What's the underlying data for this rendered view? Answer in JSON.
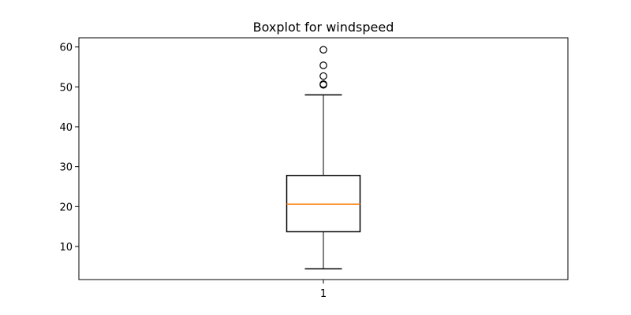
{
  "chart_data": {
    "type": "boxplot",
    "title": "Boxplot for windspeed",
    "xlabel": "",
    "ylabel": "",
    "categories": [
      "1"
    ],
    "y_ticks": [
      10,
      20,
      30,
      40,
      50,
      60
    ],
    "ylim": [
      1.7,
      62.3
    ],
    "grid": false,
    "boxes": [
      {
        "category": "1",
        "whisker_low": 4.4,
        "q1": 13.7,
        "median": 20.6,
        "q3": 27.8,
        "whisker_high": 48.0,
        "outliers": [
          50.5,
          50.7,
          52.7,
          55.4,
          59.3
        ]
      }
    ],
    "colors": {
      "box": "#000000",
      "median": "#ff7f0e",
      "outlier_edge": "#000000"
    }
  }
}
